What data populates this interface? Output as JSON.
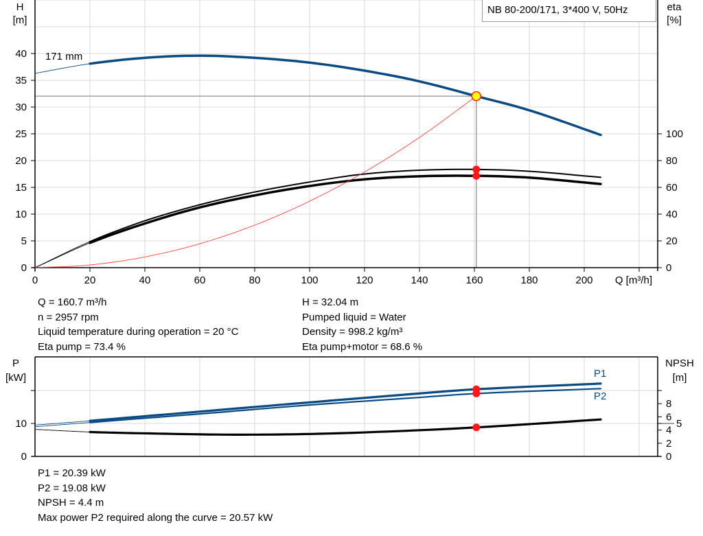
{
  "title": "NB 80-200/171, 3*400 V, 50Hz",
  "chart_data": [
    {
      "type": "line",
      "ylabel": "H\n[m]",
      "ylabel_lines": [
        "H",
        "[m]"
      ],
      "y2label_lines": [
        "eta",
        "[%]"
      ],
      "xlabel": "Q [m³/h]",
      "xlim": [
        0,
        226
      ],
      "ylim": [
        0,
        45
      ],
      "y2lim": [
        0,
        100
      ],
      "xticks": [
        0,
        20,
        40,
        60,
        80,
        100,
        120,
        140,
        160,
        180,
        200
      ],
      "yticks": [
        0,
        5,
        10,
        15,
        20,
        25,
        30,
        35,
        40
      ],
      "y2ticks": [
        0,
        20,
        40,
        60,
        80,
        100
      ],
      "grid": true,
      "curve_label": "171 mm",
      "operating_range": [
        20,
        206
      ],
      "series": [
        {
          "key": "H",
          "axis": "left",
          "color": "#0a4a82",
          "x": [
            0,
            20,
            40,
            60,
            80,
            100,
            120,
            140,
            160.7,
            180,
            206
          ],
          "y": [
            36.3,
            38.1,
            39.2,
            39.6,
            39.2,
            38.3,
            36.8,
            34.8,
            32.04,
            29.4,
            24.8
          ]
        },
        {
          "key": "eta_pump",
          "axis": "right",
          "color": "#000000",
          "x": [
            0,
            20,
            40,
            60,
            80,
            100,
            120,
            140,
            160.7,
            180,
            206
          ],
          "y": [
            0,
            19.5,
            35,
            47,
            56.5,
            64,
            70,
            72.8,
            73.4,
            72,
            67.5
          ]
        },
        {
          "key": "eta_pump_motor",
          "axis": "right",
          "color": "#000000",
          "x": [
            0,
            20,
            40,
            60,
            80,
            100,
            120,
            140,
            160.7,
            180,
            206
          ],
          "y": [
            0,
            18.5,
            33,
            45,
            54,
            61,
            66,
            68.3,
            68.6,
            67.3,
            62.5
          ]
        },
        {
          "key": "system",
          "axis": "left",
          "color": "#ff4040",
          "x": [
            0,
            20,
            40,
            60,
            80,
            100,
            120,
            140,
            160.7
          ],
          "y": [
            0,
            0.5,
            2.0,
            4.47,
            7.94,
            12.41,
            17.87,
            24.32,
            32.04
          ]
        }
      ],
      "duty_point": {
        "Q": 160.7,
        "H": 32.04,
        "eta_pump": 73.4,
        "eta_pump_motor": 68.6
      }
    },
    {
      "type": "line",
      "ylabel_lines": [
        "P",
        "[kW]"
      ],
      "y2label_lines": [
        "NPSH",
        "[m]"
      ],
      "xlim": [
        0,
        226
      ],
      "ylim": [
        0,
        30
      ],
      "y2lim": [
        0,
        15
      ],
      "yticks": [
        0,
        10,
        20
      ],
      "ytick_labels": [
        "0",
        "10",
        ""
      ],
      "y2ticks": [
        0,
        2,
        4,
        5,
        6,
        8,
        10
      ],
      "y2tick_labels": [
        "0",
        "2",
        "4",
        "5",
        "6",
        "8",
        ""
      ],
      "grid": true,
      "operating_range": [
        20,
        206
      ],
      "series": [
        {
          "key": "P1",
          "name": "P1",
          "axis": "left",
          "color": "#0a4a82",
          "x": [
            0,
            20,
            60,
            100,
            140,
            160.7,
            206
          ],
          "y": [
            9.5,
            10.8,
            13.6,
            16.4,
            19.1,
            20.39,
            22.1
          ]
        },
        {
          "key": "P2",
          "name": "P2",
          "axis": "left",
          "color": "#0a4a82",
          "x": [
            0,
            20,
            60,
            100,
            140,
            160.7,
            206
          ],
          "y": [
            9.0,
            10.3,
            12.9,
            15.6,
            17.9,
            19.08,
            20.57
          ]
        },
        {
          "key": "NPSH",
          "axis": "right",
          "color": "#000000",
          "x": [
            0,
            20,
            40,
            70,
            100,
            130,
            160.7,
            206
          ],
          "y": [
            4.1,
            3.7,
            3.5,
            3.3,
            3.4,
            3.8,
            4.4,
            5.6
          ]
        }
      ],
      "duty_point": {
        "Q": 160.7,
        "P1": 20.39,
        "P2": 19.08,
        "NPSH": 4.4
      }
    }
  ],
  "info_top_left": [
    "Q = 160.7 m³/h",
    "n = 2957 rpm",
    "Liquid temperature during operation = 20 °C",
    "Eta pump = 73.4 %"
  ],
  "info_top_right": [
    "H = 32.04 m",
    "Pumped liquid = Water",
    "Density = 998.2 kg/m³",
    "Eta pump+motor = 68.6 %"
  ],
  "info_bottom": [
    "P1 = 20.39 kW",
    "P2 = 19.08 kW",
    "NPSH = 4.4 m",
    "Max power P2 required along the curve = 20.57 kW"
  ]
}
